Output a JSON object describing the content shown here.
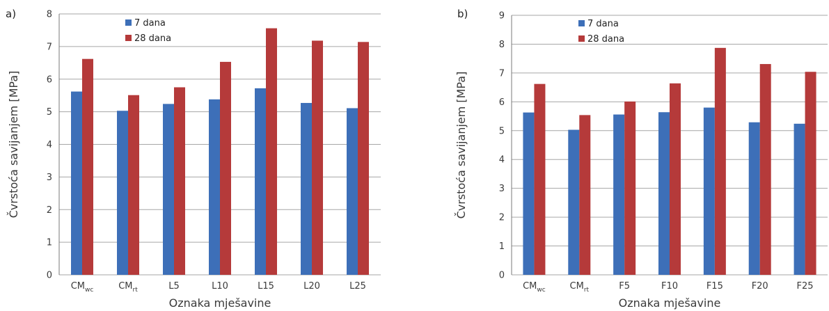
{
  "colors": {
    "series_7": "#3d6fb8",
    "series_28": "#b53a3a",
    "grid": "#a6a6a6"
  },
  "chart_data": [
    {
      "panel": "a)",
      "type": "bar",
      "xlabel": "Oznaka mješavine",
      "ylabel": "Čvrstoća savijanjem [MPa]",
      "ylim": [
        0,
        8
      ],
      "yticks": [
        0,
        1,
        2,
        3,
        4,
        5,
        6,
        7,
        8
      ],
      "grid": true,
      "legend_position": "top-left",
      "categories": [
        {
          "base": "CM",
          "sub": "wc"
        },
        {
          "base": "CM",
          "sub": "rt"
        },
        {
          "base": "L5",
          "sub": ""
        },
        {
          "base": "L10",
          "sub": ""
        },
        {
          "base": "L15",
          "sub": ""
        },
        {
          "base": "L20",
          "sub": ""
        },
        {
          "base": "L25",
          "sub": ""
        }
      ],
      "series": [
        {
          "name": "7 dana",
          "color_key": "series_7",
          "values": [
            5.62,
            5.03,
            5.24,
            5.38,
            5.72,
            5.27,
            5.11
          ]
        },
        {
          "name": "28 dana",
          "color_key": "series_28",
          "values": [
            6.62,
            5.51,
            5.75,
            6.53,
            7.56,
            7.18,
            7.14
          ]
        }
      ]
    },
    {
      "panel": "b)",
      "type": "bar",
      "xlabel": "Oznaka mješavine",
      "ylabel": "Čvrstoća savijanjem [MPa]",
      "ylim": [
        0,
        9
      ],
      "yticks": [
        0,
        1,
        2,
        3,
        4,
        5,
        6,
        7,
        8,
        9
      ],
      "grid": true,
      "legend_position": "top-left",
      "categories": [
        {
          "base": "CM",
          "sub": "wc"
        },
        {
          "base": "CM",
          "sub": "rt"
        },
        {
          "base": "F5",
          "sub": ""
        },
        {
          "base": "F10",
          "sub": ""
        },
        {
          "base": "F15",
          "sub": ""
        },
        {
          "base": "F20",
          "sub": ""
        },
        {
          "base": "F25",
          "sub": ""
        }
      ],
      "series": [
        {
          "name": "7 dana",
          "color_key": "series_7",
          "values": [
            5.63,
            5.03,
            5.56,
            5.64,
            5.8,
            5.29,
            5.24
          ]
        },
        {
          "name": "28 dana",
          "color_key": "series_28",
          "values": [
            6.62,
            5.54,
            6.01,
            6.64,
            7.87,
            7.31,
            7.04
          ]
        }
      ]
    }
  ]
}
